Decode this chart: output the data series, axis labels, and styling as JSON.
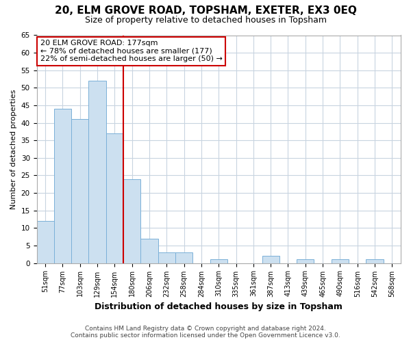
{
  "title": "20, ELM GROVE ROAD, TOPSHAM, EXETER, EX3 0EQ",
  "subtitle": "Size of property relative to detached houses in Topsham",
  "xlabel": "Distribution of detached houses by size in Topsham",
  "ylabel": "Number of detached properties",
  "bar_labels": [
    "51sqm",
    "77sqm",
    "103sqm",
    "129sqm",
    "154sqm",
    "180sqm",
    "206sqm",
    "232sqm",
    "258sqm",
    "284sqm",
    "310sqm",
    "335sqm",
    "361sqm",
    "387sqm",
    "413sqm",
    "439sqm",
    "465sqm",
    "490sqm",
    "516sqm",
    "542sqm",
    "568sqm"
  ],
  "bar_heights": [
    12,
    44,
    41,
    52,
    37,
    24,
    7,
    3,
    3,
    0,
    1,
    0,
    0,
    2,
    0,
    1,
    0,
    1,
    0,
    1,
    0
  ],
  "bar_color": "#cce0f0",
  "bar_edge_color": "#7ab0d8",
  "grid_color": "#c8d4e0",
  "vline_color": "#cc0000",
  "annotation_title": "20 ELM GROVE ROAD: 177sqm",
  "annotation_line1": "← 78% of detached houses are smaller (177)",
  "annotation_line2": "22% of semi-detached houses are larger (50) →",
  "annotation_box_color": "#ffffff",
  "annotation_box_edge": "#cc0000",
  "ylim": [
    0,
    65
  ],
  "yticks": [
    0,
    5,
    10,
    15,
    20,
    25,
    30,
    35,
    40,
    45,
    50,
    55,
    60,
    65
  ],
  "footer_line1": "Contains HM Land Registry data © Crown copyright and database right 2024.",
  "footer_line2": "Contains public sector information licensed under the Open Government Licence v3.0.",
  "background_color": "#ffffff"
}
